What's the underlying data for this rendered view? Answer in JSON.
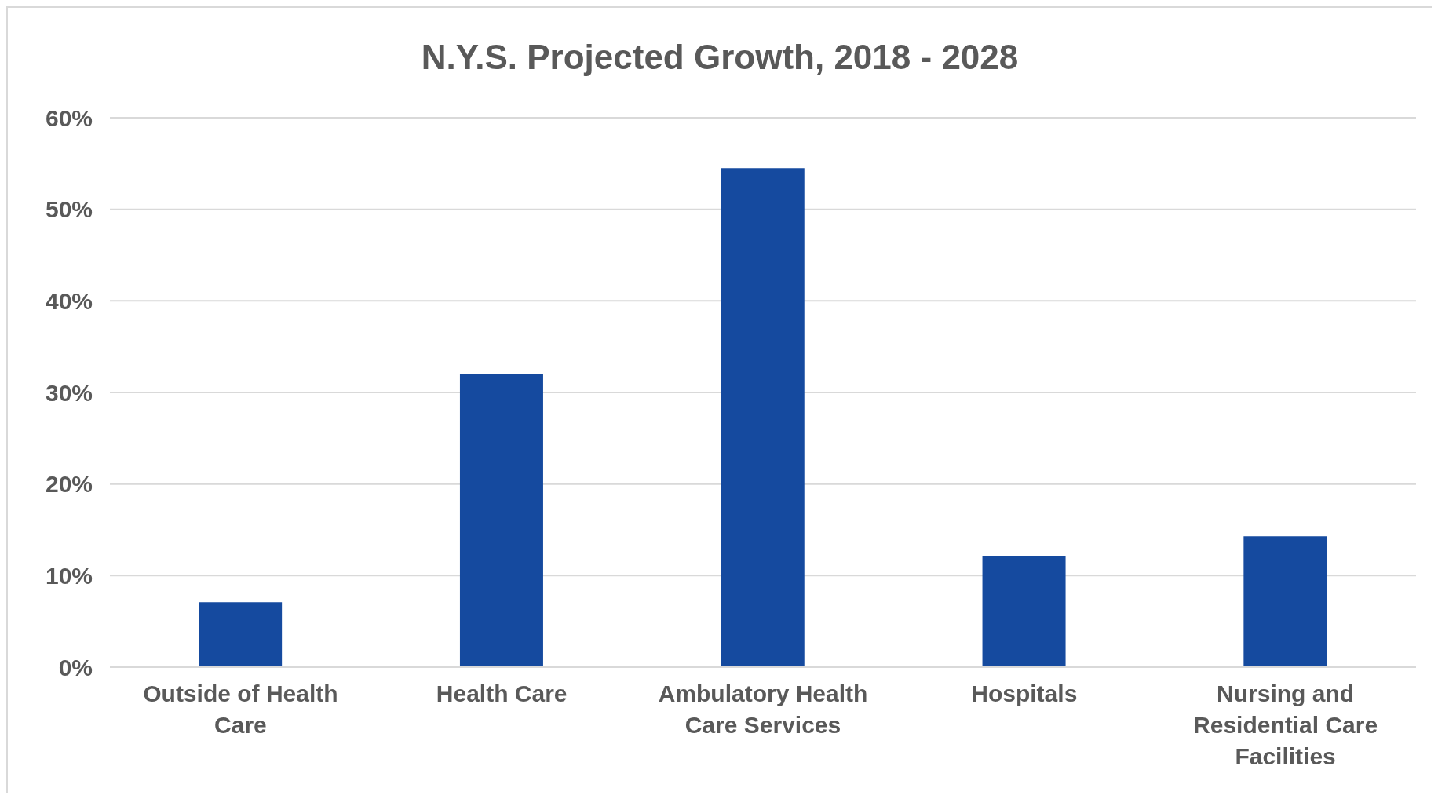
{
  "chart_data": {
    "type": "bar",
    "title": "N.Y.S. Projected Growth, 2018 - 2028",
    "categories": [
      "Outside of Health Care",
      "Health Care",
      "Ambulatory Health Care Services",
      "Hospitals",
      "Nursing and Residential Care Facilities"
    ],
    "values": [
      7.1,
      32.0,
      54.5,
      12.1,
      14.3
    ],
    "color": "#154a9f",
    "ylim": [
      0,
      60
    ],
    "yticks": [
      {
        "value": 0,
        "label": "0%"
      },
      {
        "value": 10,
        "label": "10%"
      },
      {
        "value": 20,
        "label": "20%"
      },
      {
        "value": 30,
        "label": "30%"
      },
      {
        "value": 40,
        "label": "40%"
      },
      {
        "value": 50,
        "label": "50%"
      },
      {
        "value": 60,
        "label": "60%"
      }
    ],
    "grid": "y"
  }
}
